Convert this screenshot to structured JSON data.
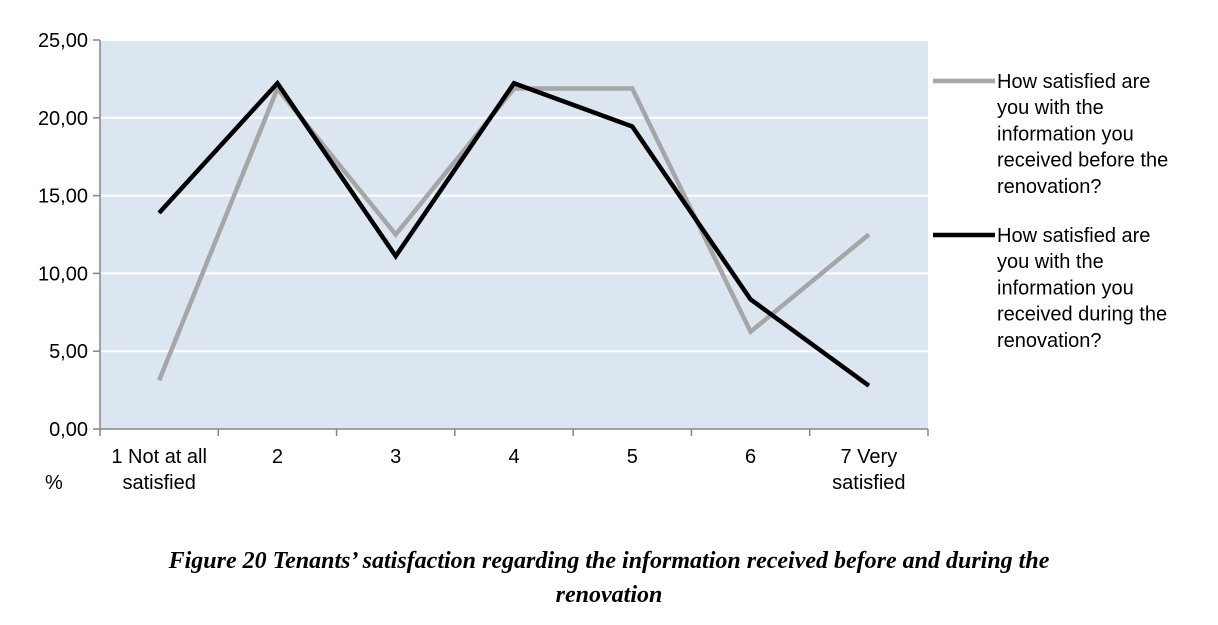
{
  "chart_data": {
    "type": "line",
    "categories": [
      "1 Not at all satisfied",
      "2",
      "3",
      "4",
      "5",
      "6",
      "7 Very satisfied"
    ],
    "category_lines": [
      [
        "1 Not at all",
        "satisfied"
      ],
      [
        "2"
      ],
      [
        "3"
      ],
      [
        "4"
      ],
      [
        "5"
      ],
      [
        "6"
      ],
      [
        "7 Very",
        "satisfied"
      ]
    ],
    "series": [
      {
        "name": "How satisfied are you with the information you received before the renovation?",
        "name_lines": [
          "How satisfied are",
          "you with the",
          "information you",
          "received before the",
          "renovation?"
        ],
        "values": [
          3.13,
          21.88,
          12.5,
          21.88,
          21.88,
          6.25,
          12.5
        ],
        "color": "#a6a6a6"
      },
      {
        "name": "How satisfied are you with the information you received during the renovation?",
        "name_lines": [
          "How satisfied are",
          "you with the",
          "information you",
          "received during the",
          "renovation?"
        ],
        "values": [
          13.89,
          22.22,
          11.11,
          22.22,
          19.44,
          8.33,
          2.78
        ],
        "color": "#000000"
      }
    ],
    "yticks": [
      "0,00",
      "5,00",
      "10,00",
      "15,00",
      "20,00",
      "25,00"
    ],
    "ylim": [
      0,
      25
    ],
    "y_unit": "%",
    "grid": true,
    "plot_background": "#dce6f1",
    "legend_position": "right"
  },
  "caption": {
    "line1": "Figure 20 Tenants’ satisfaction regarding the information received before and during the",
    "line2": "renovation"
  }
}
